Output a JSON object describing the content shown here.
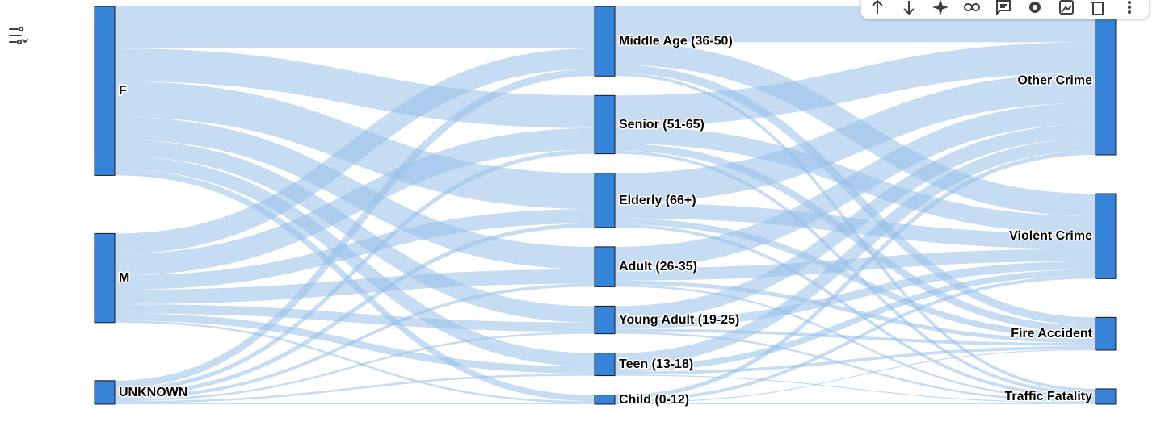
{
  "colors": {
    "node": "#3584d9",
    "link": "#97c0ea",
    "icon": "#3c4043"
  },
  "toolbar": {
    "icons": [
      "arrow-up-icon",
      "arrow-down-icon",
      "sparkle-icon",
      "link-icon",
      "comment-icon",
      "gear-icon",
      "image-icon",
      "trash-icon",
      "more-vert-icon"
    ]
  },
  "filter_icon": "filter-list-icon",
  "chart_data": {
    "type": "sankey",
    "columns": [
      [
        "F",
        "M",
        "UNKNOWN"
      ],
      [
        "Middle Age (36-50)",
        "Senior (51-65)",
        "Elderly (66+)",
        "Adult (26-35)",
        "Young Adult (19-25)",
        "Teen (13-18)",
        "Child (0-12)"
      ],
      [
        "Other Crime",
        "Violent Crime",
        "Fire Accident",
        "Traffic Fatality"
      ]
    ],
    "links": [
      {
        "source": "F",
        "target": "Middle Age (36-50)",
        "value": 41
      },
      {
        "source": "F",
        "target": "Senior (51-65)",
        "value": 32
      },
      {
        "source": "F",
        "target": "Elderly (66+)",
        "value": 35
      },
      {
        "source": "F",
        "target": "Adult (26-35)",
        "value": 22
      },
      {
        "source": "F",
        "target": "Young Adult (19-25)",
        "value": 16
      },
      {
        "source": "F",
        "target": "Teen (13-18)",
        "value": 13
      },
      {
        "source": "F",
        "target": "Child (0-12)",
        "value": 6
      },
      {
        "source": "M",
        "target": "Middle Age (36-50)",
        "value": 20
      },
      {
        "source": "M",
        "target": "Senior (51-65)",
        "value": 21
      },
      {
        "source": "M",
        "target": "Elderly (66+)",
        "value": 14
      },
      {
        "source": "M",
        "target": "Adult (26-35)",
        "value": 14
      },
      {
        "source": "M",
        "target": "Young Adult (19-25)",
        "value": 9
      },
      {
        "source": "M",
        "target": "Teen (13-18)",
        "value": 7
      },
      {
        "source": "M",
        "target": "Child (0-12)",
        "value": 2
      },
      {
        "source": "UNKNOWN",
        "target": "Middle Age (36-50)",
        "value": 7
      },
      {
        "source": "UNKNOWN",
        "target": "Senior (51-65)",
        "value": 4
      },
      {
        "source": "UNKNOWN",
        "target": "Elderly (66+)",
        "value": 4
      },
      {
        "source": "UNKNOWN",
        "target": "Adult (26-35)",
        "value": 3
      },
      {
        "source": "UNKNOWN",
        "target": "Young Adult (19-25)",
        "value": 2
      },
      {
        "source": "UNKNOWN",
        "target": "Teen (13-18)",
        "value": 2
      },
      {
        "source": "UNKNOWN",
        "target": "Child (0-12)",
        "value": 1
      },
      {
        "source": "Middle Age (36-50)",
        "target": "Other Crime",
        "value": 35
      },
      {
        "source": "Middle Age (36-50)",
        "target": "Violent Crime",
        "value": 22
      },
      {
        "source": "Middle Age (36-50)",
        "target": "Fire Accident",
        "value": 8
      },
      {
        "source": "Middle Age (36-50)",
        "target": "Traffic Fatality",
        "value": 3
      },
      {
        "source": "Senior (51-65)",
        "target": "Other Crime",
        "value": 30
      },
      {
        "source": "Senior (51-65)",
        "target": "Violent Crime",
        "value": 17
      },
      {
        "source": "Senior (51-65)",
        "target": "Fire Accident",
        "value": 7
      },
      {
        "source": "Senior (51-65)",
        "target": "Traffic Fatality",
        "value": 3
      },
      {
        "source": "Elderly (66+)",
        "target": "Other Crime",
        "value": 29
      },
      {
        "source": "Elderly (66+)",
        "target": "Violent Crime",
        "value": 15
      },
      {
        "source": "Elderly (66+)",
        "target": "Fire Accident",
        "value": 6
      },
      {
        "source": "Elderly (66+)",
        "target": "Traffic Fatality",
        "value": 3
      },
      {
        "source": "Adult (26-35)",
        "target": "Other Crime",
        "value": 21
      },
      {
        "source": "Adult (26-35)",
        "target": "Violent Crime",
        "value": 12
      },
      {
        "source": "Adult (26-35)",
        "target": "Fire Accident",
        "value": 4
      },
      {
        "source": "Adult (26-35)",
        "target": "Traffic Fatality",
        "value": 2
      },
      {
        "source": "Young Adult (19-25)",
        "target": "Other Crime",
        "value": 14
      },
      {
        "source": "Young Adult (19-25)",
        "target": "Violent Crime",
        "value": 8
      },
      {
        "source": "Young Adult (19-25)",
        "target": "Fire Accident",
        "value": 3
      },
      {
        "source": "Young Adult (19-25)",
        "target": "Traffic Fatality",
        "value": 2
      },
      {
        "source": "Teen (13-18)",
        "target": "Other Crime",
        "value": 12
      },
      {
        "source": "Teen (13-18)",
        "target": "Violent Crime",
        "value": 6
      },
      {
        "source": "Teen (13-18)",
        "target": "Fire Accident",
        "value": 3
      },
      {
        "source": "Teen (13-18)",
        "target": "Traffic Fatality",
        "value": 1
      },
      {
        "source": "Child (0-12)",
        "target": "Other Crime",
        "value": 4
      },
      {
        "source": "Child (0-12)",
        "target": "Violent Crime",
        "value": 3
      },
      {
        "source": "Child (0-12)",
        "target": "Fire Accident",
        "value": 1
      },
      {
        "source": "Child (0-12)",
        "target": "Traffic Fatality",
        "value": 1
      }
    ]
  }
}
